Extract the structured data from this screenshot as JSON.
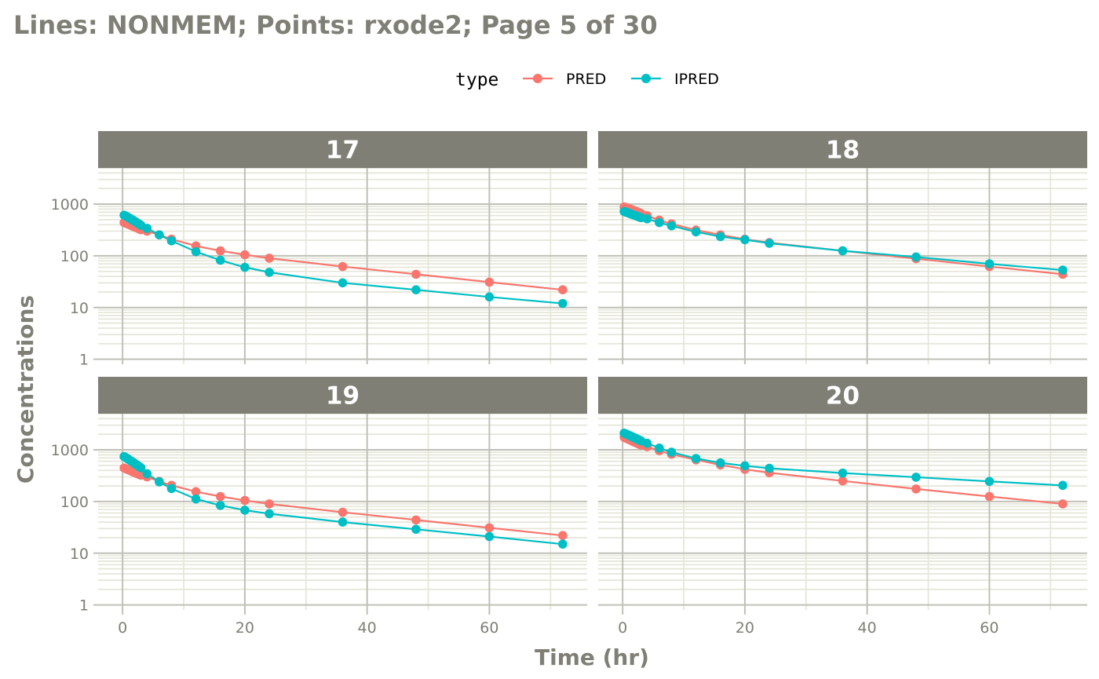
{
  "chart_data": {
    "type": "line",
    "title": "Lines: NONMEM; Points: rxode2; Page 5 of 30",
    "xlabel": "Time (hr)",
    "ylabel": "Concentrations",
    "yscale": "log10",
    "xlim": [
      -4,
      76
    ],
    "ylim": [
      0.8,
      5000
    ],
    "xticks": [
      0,
      20,
      40,
      60
    ],
    "xtick_labels": [
      "0",
      "20",
      "40",
      "60"
    ],
    "yticks": [
      1,
      10,
      100,
      1000
    ],
    "ytick_labels": [
      "1",
      "10",
      "100",
      "1000"
    ],
    "grid": true,
    "legend": {
      "title": "type",
      "position": "top",
      "entries": [
        "PRED",
        "IPRED"
      ]
    },
    "colors": {
      "PRED": "#F8766D",
      "IPRED": "#00BFC4",
      "strip": "#7f7f76",
      "grid_major": "#c0c0b8",
      "grid_minor": "#e6e6da"
    },
    "x": [
      0.25,
      0.5,
      0.75,
      1,
      1.25,
      1.5,
      1.75,
      2,
      2.25,
      2.5,
      2.75,
      3,
      4,
      6,
      8,
      12,
      16,
      20,
      24,
      36,
      48,
      60,
      72
    ],
    "panels": [
      {
        "label": "17",
        "series": [
          {
            "name": "PRED",
            "values": [
              440,
              430,
              418,
              405,
              395,
              382,
              370,
              360,
              350,
              340,
              330,
              320,
              300,
              255,
              210,
              155,
              125,
              105,
              90,
              62,
              44,
              31,
              22
            ]
          },
          {
            "name": "IPRED",
            "values": [
              610,
              590,
              570,
              548,
              525,
              505,
              485,
              465,
              445,
              425,
              408,
              390,
              340,
              255,
              195,
              120,
              82,
              60,
              48,
              30,
              22,
              16,
              12
            ]
          }
        ]
      },
      {
        "label": "18",
        "series": [
          {
            "name": "PRED",
            "values": [
              880,
              860,
              840,
              820,
              800,
              780,
              760,
              740,
              720,
              700,
              680,
              660,
              600,
              490,
              415,
              315,
              255,
              210,
              180,
              125,
              88,
              62,
              44
            ]
          },
          {
            "name": "IPRED",
            "values": [
              720,
              700,
              685,
              668,
              650,
              635,
              620,
              605,
              590,
              575,
              560,
              548,
              520,
              440,
              380,
              290,
              235,
              205,
              175,
              125,
              95,
              70,
              53
            ]
          }
        ]
      },
      {
        "label": "19",
        "series": [
          {
            "name": "PRED",
            "values": [
              445,
              432,
              420,
              408,
              397,
              385,
              373,
              362,
              352,
              342,
              332,
              322,
              300,
              245,
              205,
              155,
              125,
              105,
              90,
              62,
              44,
              31,
              22
            ]
          },
          {
            "name": "IPRED",
            "values": [
              740,
              710,
              680,
              650,
              622,
              595,
              568,
              542,
              518,
              495,
              472,
              450,
              345,
              240,
              178,
              112,
              84,
              68,
              58,
              40,
              29,
              21,
              15
            ]
          }
        ]
      },
      {
        "label": "20",
        "series": [
          {
            "name": "PRED",
            "values": [
              1750,
              1690,
              1640,
              1590,
              1540,
              1490,
              1440,
              1400,
              1360,
              1320,
              1280,
              1240,
              1150,
              960,
              820,
              640,
              510,
              420,
              360,
              250,
              175,
              125,
              90
            ]
          },
          {
            "name": "IPRED",
            "values": [
              2100,
              2040,
              1980,
              1920,
              1860,
              1800,
              1745,
              1690,
              1640,
              1590,
              1540,
              1490,
              1340,
              1080,
              900,
              680,
              560,
              490,
              440,
              355,
              295,
              245,
              205
            ]
          }
        ]
      }
    ]
  }
}
